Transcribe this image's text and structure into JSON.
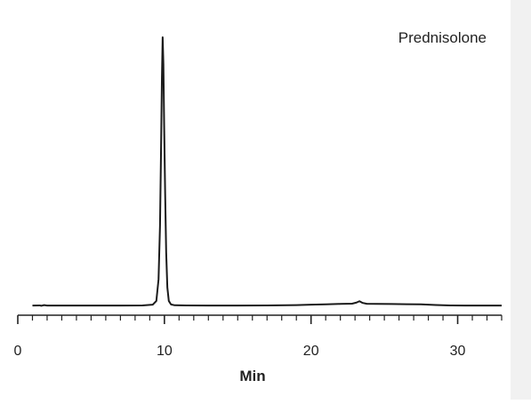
{
  "chart_data": {
    "type": "line",
    "title": "",
    "annotation": "Prednisolone",
    "xlabel": "Min",
    "ylabel": "",
    "xlim": [
      0,
      33
    ],
    "ylim": [
      0,
      100
    ],
    "x_major_ticks": [
      0,
      10,
      20,
      30
    ],
    "x_tick_labels": [
      "0",
      "10",
      "20",
      "30"
    ],
    "x_minor_tick_step": 1,
    "grid": false,
    "legend": "none",
    "line_color": "#1a1a1a",
    "series": [
      {
        "points": [
          [
            1.0,
            0.3
          ],
          [
            1.5,
            0.35
          ],
          [
            1.6,
            0.2
          ],
          [
            1.8,
            0.45
          ],
          [
            2.0,
            0.3
          ],
          [
            3,
            0.3
          ],
          [
            5,
            0.3
          ],
          [
            7,
            0.3
          ],
          [
            8.5,
            0.35
          ],
          [
            9.2,
            0.6
          ],
          [
            9.45,
            2
          ],
          [
            9.6,
            10
          ],
          [
            9.7,
            30
          ],
          [
            9.78,
            62
          ],
          [
            9.83,
            85
          ],
          [
            9.88,
            100
          ],
          [
            9.93,
            90
          ],
          [
            9.98,
            68
          ],
          [
            10.05,
            42
          ],
          [
            10.12,
            20
          ],
          [
            10.2,
            7
          ],
          [
            10.3,
            2
          ],
          [
            10.45,
            0.7
          ],
          [
            10.7,
            0.4
          ],
          [
            11.5,
            0.35
          ],
          [
            13,
            0.3
          ],
          [
            15,
            0.3
          ],
          [
            17,
            0.35
          ],
          [
            19,
            0.45
          ],
          [
            20,
            0.6
          ],
          [
            21,
            0.75
          ],
          [
            22,
            0.9
          ],
          [
            22.8,
            1.0
          ],
          [
            23.1,
            1.4
          ],
          [
            23.3,
            1.9
          ],
          [
            23.5,
            1.3
          ],
          [
            23.8,
            0.95
          ],
          [
            24.5,
            0.9
          ],
          [
            25.5,
            0.85
          ],
          [
            26.5,
            0.8
          ],
          [
            27.5,
            0.75
          ],
          [
            28.5,
            0.5
          ],
          [
            29.5,
            0.35
          ],
          [
            30.5,
            0.3
          ],
          [
            31.5,
            0.3
          ],
          [
            33,
            0.3
          ]
        ]
      }
    ]
  }
}
